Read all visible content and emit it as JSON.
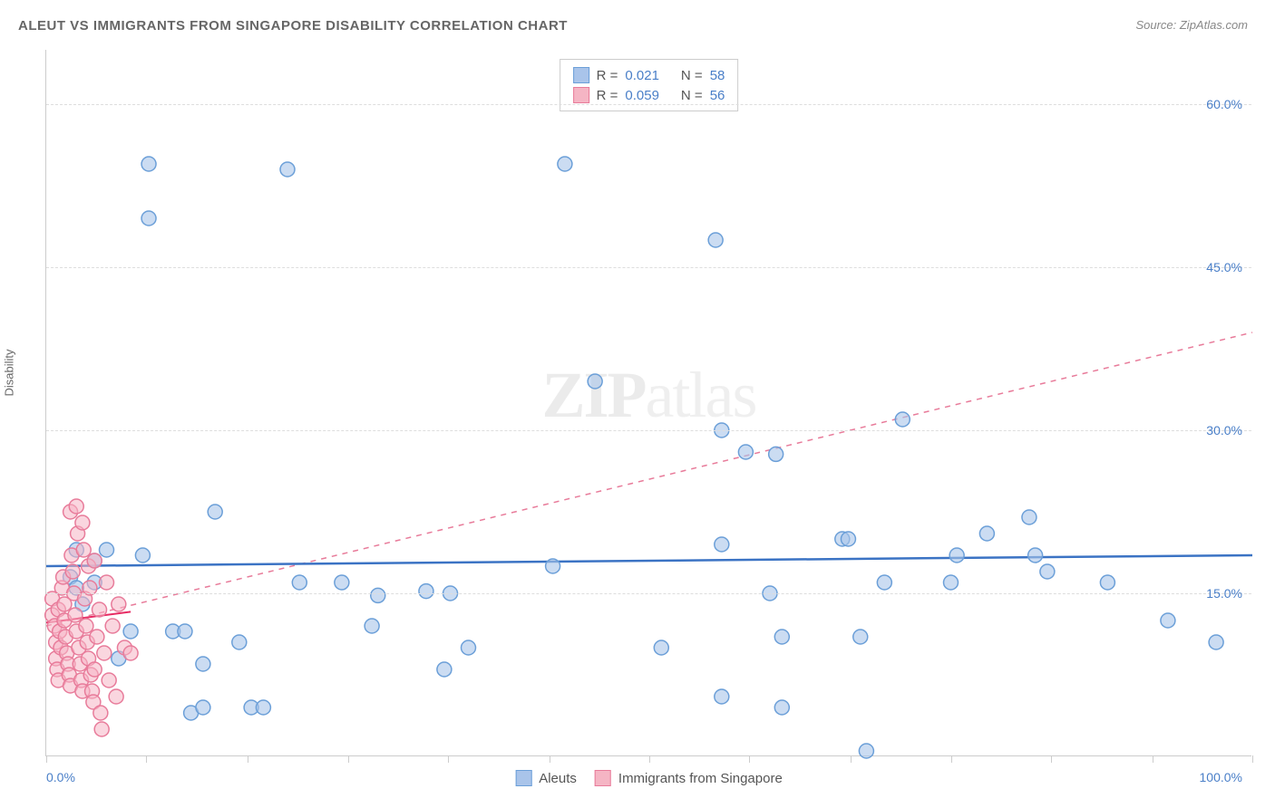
{
  "title": "ALEUT VS IMMIGRANTS FROM SINGAPORE DISABILITY CORRELATION CHART",
  "source": "Source: ZipAtlas.com",
  "ylabel": "Disability",
  "watermark": {
    "zip": "ZIP",
    "atlas": "atlas"
  },
  "chart": {
    "type": "scatter",
    "xlim": [
      0,
      100
    ],
    "ylim": [
      0,
      65
    ],
    "xtick_positions": [
      0,
      8.3,
      16.7,
      25,
      33.3,
      41.7,
      50,
      58.3,
      66.7,
      75,
      83.3,
      91.7,
      100
    ],
    "xtick_labels": {
      "0": "0.0%",
      "100": "100.0%"
    },
    "ytick_positions": [
      15,
      30,
      45,
      60
    ],
    "ytick_labels": [
      "15.0%",
      "30.0%",
      "45.0%",
      "60.0%"
    ],
    "background_color": "#ffffff",
    "grid_color": "#dddddd",
    "axis_color": "#cccccc",
    "tick_label_color": "#4a7fc8",
    "marker_radius": 8,
    "marker_stroke_width": 1.5,
    "series": [
      {
        "name": "Aleuts",
        "fill_color": "#a9c4ea",
        "stroke_color": "#6b9fd8",
        "fill_opacity": 0.6,
        "stats": {
          "R": "0.021",
          "N": "58"
        },
        "trendline": {
          "type": "solid",
          "color": "#3b73c4",
          "width": 2.5,
          "y1": 17.5,
          "y2": 18.5
        },
        "points": [
          [
            8.5,
            54.5
          ],
          [
            8.5,
            49.5
          ],
          [
            20.0,
            54.0
          ],
          [
            43.0,
            54.5
          ],
          [
            55.5,
            47.5
          ],
          [
            45.5,
            34.5
          ],
          [
            56.0,
            30.0
          ],
          [
            56.0,
            5.5
          ],
          [
            2.5,
            19.0
          ],
          [
            2.0,
            16.5
          ],
          [
            2.5,
            15.5
          ],
          [
            3.0,
            14.0
          ],
          [
            4.0,
            18.0
          ],
          [
            4.0,
            16.0
          ],
          [
            5.0,
            19.0
          ],
          [
            6.0,
            9.0
          ],
          [
            7.0,
            11.5
          ],
          [
            8.0,
            18.5
          ],
          [
            10.5,
            11.5
          ],
          [
            11.5,
            11.5
          ],
          [
            12.0,
            4.0
          ],
          [
            13.0,
            4.5
          ],
          [
            13.0,
            8.5
          ],
          [
            14.0,
            22.5
          ],
          [
            16.0,
            10.5
          ],
          [
            17.0,
            4.5
          ],
          [
            18.0,
            4.5
          ],
          [
            21.0,
            16.0
          ],
          [
            24.5,
            16.0
          ],
          [
            27.0,
            12.0
          ],
          [
            27.5,
            14.8
          ],
          [
            31.5,
            15.2
          ],
          [
            33.5,
            15.0
          ],
          [
            33.0,
            8.0
          ],
          [
            35.0,
            10.0
          ],
          [
            42.0,
            17.5
          ],
          [
            51.0,
            10.0
          ],
          [
            56.0,
            19.5
          ],
          [
            58.0,
            28.0
          ],
          [
            60.5,
            27.8
          ],
          [
            60.0,
            15.0
          ],
          [
            61.0,
            4.5
          ],
          [
            68.0,
            0.5
          ],
          [
            61.0,
            11.0
          ],
          [
            67.5,
            11.0
          ],
          [
            66.0,
            20.0
          ],
          [
            66.5,
            20.0
          ],
          [
            69.5,
            16.0
          ],
          [
            71.0,
            31.0
          ],
          [
            75.0,
            16.0
          ],
          [
            75.5,
            18.5
          ],
          [
            78.0,
            20.5
          ],
          [
            81.5,
            22.0
          ],
          [
            82.0,
            18.5
          ],
          [
            83.0,
            17.0
          ],
          [
            88.0,
            16.0
          ],
          [
            93.0,
            12.5
          ],
          [
            97.0,
            10.5
          ]
        ]
      },
      {
        "name": "Immigrants from Singapore",
        "fill_color": "#f5b5c4",
        "stroke_color": "#e87b9a",
        "fill_opacity": 0.55,
        "stats": {
          "R": "0.059",
          "N": "56"
        },
        "trendline": {
          "type": "dashed",
          "color": "#e87b9a",
          "width": 1.5,
          "y1": 12.0,
          "y2": 39.0
        },
        "trendline_short": {
          "x2": 7,
          "y1": 12.3,
          "y2": 13.3,
          "color": "#e72b63",
          "width": 2
        },
        "points": [
          [
            0.5,
            13.0
          ],
          [
            0.5,
            14.5
          ],
          [
            0.7,
            12.0
          ],
          [
            0.8,
            10.5
          ],
          [
            0.8,
            9.0
          ],
          [
            0.9,
            8.0
          ],
          [
            1.0,
            7.0
          ],
          [
            1.0,
            13.5
          ],
          [
            1.1,
            11.5
          ],
          [
            1.2,
            10.0
          ],
          [
            1.3,
            15.5
          ],
          [
            1.4,
            16.5
          ],
          [
            1.5,
            14.0
          ],
          [
            1.5,
            12.5
          ],
          [
            1.6,
            11.0
          ],
          [
            1.7,
            9.5
          ],
          [
            1.8,
            8.5
          ],
          [
            1.9,
            7.5
          ],
          [
            2.0,
            6.5
          ],
          [
            2.0,
            22.5
          ],
          [
            2.1,
            18.5
          ],
          [
            2.2,
            17.0
          ],
          [
            2.3,
            15.0
          ],
          [
            2.4,
            13.0
          ],
          [
            2.5,
            11.5
          ],
          [
            2.5,
            23.0
          ],
          [
            2.6,
            20.5
          ],
          [
            2.7,
            10.0
          ],
          [
            2.8,
            8.5
          ],
          [
            2.9,
            7.0
          ],
          [
            3.0,
            6.0
          ],
          [
            3.0,
            21.5
          ],
          [
            3.1,
            19.0
          ],
          [
            3.2,
            14.5
          ],
          [
            3.3,
            12.0
          ],
          [
            3.4,
            10.5
          ],
          [
            3.5,
            9.0
          ],
          [
            3.5,
            17.5
          ],
          [
            3.6,
            15.5
          ],
          [
            3.7,
            7.5
          ],
          [
            3.8,
            6.0
          ],
          [
            3.9,
            5.0
          ],
          [
            4.0,
            18.0
          ],
          [
            4.0,
            8.0
          ],
          [
            4.2,
            11.0
          ],
          [
            4.4,
            13.5
          ],
          [
            4.5,
            4.0
          ],
          [
            4.6,
            2.5
          ],
          [
            4.8,
            9.5
          ],
          [
            5.0,
            16.0
          ],
          [
            5.2,
            7.0
          ],
          [
            5.5,
            12.0
          ],
          [
            5.8,
            5.5
          ],
          [
            6.0,
            14.0
          ],
          [
            6.5,
            10.0
          ],
          [
            7.0,
            9.5
          ]
        ]
      }
    ]
  },
  "stats_legend_labels": {
    "R": "R =",
    "N": "N ="
  },
  "bottom_legend": {
    "series1": "Aleuts",
    "series2": "Immigrants from Singapore"
  }
}
